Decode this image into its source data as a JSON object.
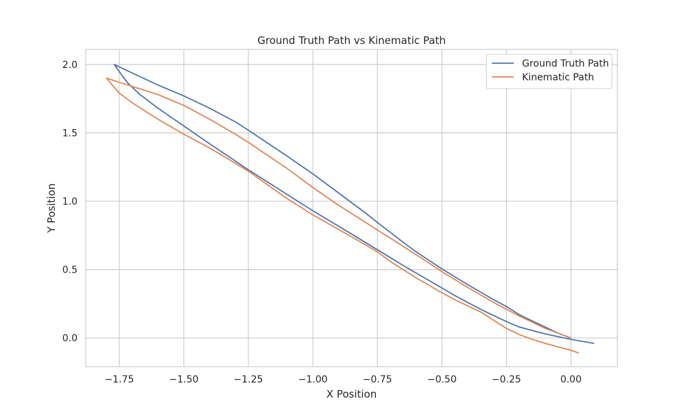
{
  "chart_data": {
    "type": "line",
    "title": "Ground Truth Path vs Kinematic Path",
    "xlabel": "X Position",
    "ylabel": "Y Position",
    "xlim": [
      -1.88,
      0.18
    ],
    "ylim": [
      -0.21,
      2.11
    ],
    "xticks": [
      -1.75,
      -1.5,
      -1.25,
      -1.0,
      -0.75,
      -0.5,
      -0.25,
      0.0
    ],
    "xtick_labels": [
      "−1.75",
      "−1.50",
      "−1.25",
      "−1.00",
      "−0.75",
      "−0.50",
      "−0.25",
      "0.00"
    ],
    "yticks": [
      0.0,
      0.5,
      1.0,
      1.5,
      2.0
    ],
    "ytick_labels": [
      "0.0",
      "0.5",
      "1.0",
      "1.5",
      "2.0"
    ],
    "grid": true,
    "legend_position": "top-right",
    "series": [
      {
        "name": "Ground Truth Path",
        "color": "#4c72b0",
        "x": [
          0.09,
          0.0,
          -0.05,
          -0.1,
          -0.15,
          -0.2,
          -0.25,
          -0.35,
          -0.45,
          -0.55,
          -0.65,
          -0.75,
          -0.85,
          -1.0,
          -1.1,
          -1.25,
          -1.4,
          -1.5,
          -1.6,
          -1.67,
          -1.72,
          -1.77,
          -1.68,
          -1.6,
          -1.5,
          -1.4,
          -1.3,
          -1.25,
          -1.1,
          -1.0,
          -0.9,
          -0.8,
          -0.75,
          -0.65,
          -0.6,
          -0.5,
          -0.4,
          -0.3,
          -0.25,
          -0.2,
          -0.1,
          -0.05,
          0.0
        ],
        "y": [
          -0.04,
          -0.01,
          0.01,
          0.03,
          0.055,
          0.08,
          0.12,
          0.21,
          0.31,
          0.42,
          0.53,
          0.645,
          0.76,
          0.93,
          1.05,
          1.23,
          1.42,
          1.55,
          1.68,
          1.78,
          1.87,
          2.0,
          1.92,
          1.85,
          1.77,
          1.68,
          1.58,
          1.52,
          1.33,
          1.2,
          1.06,
          0.92,
          0.845,
          0.7,
          0.63,
          0.505,
          0.39,
          0.28,
          0.23,
          0.17,
          0.08,
          0.035,
          0.0
        ]
      },
      {
        "name": "Kinematic Path",
        "color": "#dd8452",
        "x": [
          0.03,
          0.0,
          -0.1,
          -0.15,
          -0.2,
          -0.25,
          -0.35,
          -0.45,
          -0.5,
          -0.6,
          -0.7,
          -0.75,
          -0.85,
          -1.0,
          -1.1,
          -1.25,
          -1.4,
          -1.5,
          -1.6,
          -1.7,
          -1.75,
          -1.8,
          -1.7,
          -1.6,
          -1.5,
          -1.4,
          -1.3,
          -1.25,
          -1.1,
          -1.0,
          -0.9,
          -0.75,
          -0.6,
          -0.5,
          -0.4,
          -0.3,
          -0.2,
          -0.1,
          -0.05,
          0.0
        ],
        "y": [
          -0.11,
          -0.09,
          -0.04,
          -0.01,
          0.025,
          0.07,
          0.19,
          0.28,
          0.33,
          0.44,
          0.56,
          0.63,
          0.74,
          0.9,
          1.02,
          1.22,
          1.39,
          1.49,
          1.6,
          1.72,
          1.79,
          1.9,
          1.84,
          1.78,
          1.7,
          1.6,
          1.49,
          1.43,
          1.24,
          1.1,
          0.97,
          0.79,
          0.61,
          0.485,
          0.37,
          0.26,
          0.16,
          0.07,
          0.035,
          0.0
        ]
      }
    ]
  }
}
